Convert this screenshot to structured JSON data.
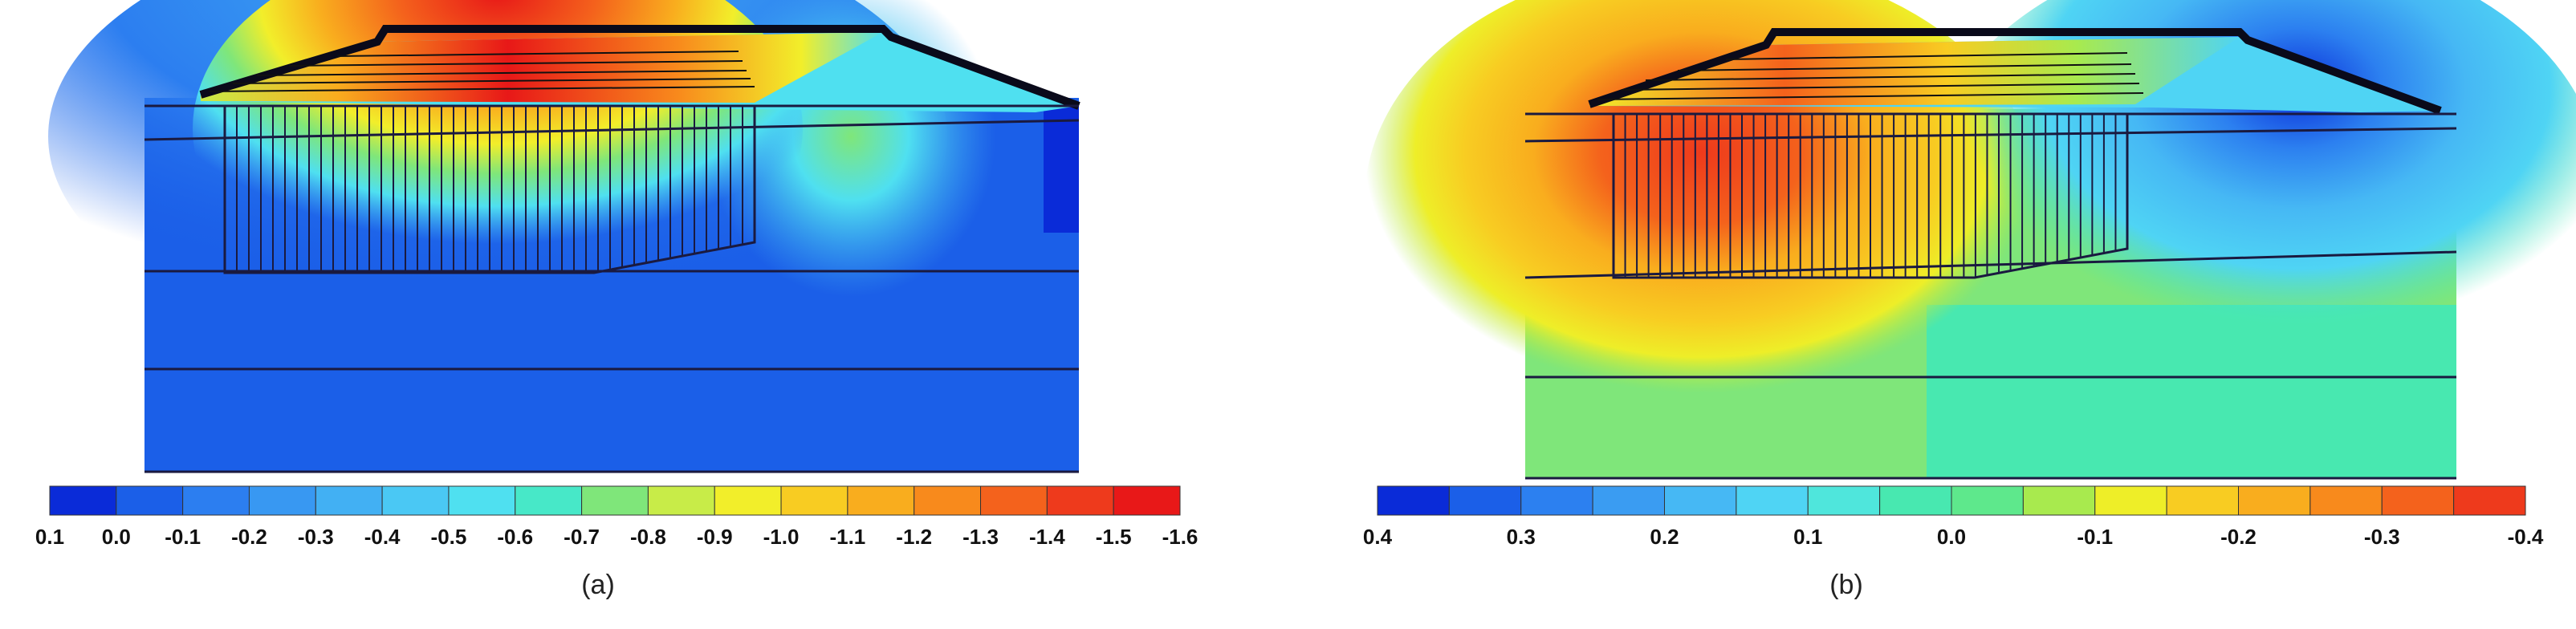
{
  "panels": [
    {
      "id": "a",
      "caption": "(a)",
      "legend": {
        "colors": [
          "#0a2bd8",
          "#1b5fe8",
          "#2c7ef0",
          "#3898f2",
          "#42b0f3",
          "#4ac8f4",
          "#4fe0f0",
          "#47e8c8",
          "#7fe67a",
          "#c8ec48",
          "#f2ee2a",
          "#f8cc22",
          "#f9ad1e",
          "#f88a1c",
          "#f4621c",
          "#ee3a1c",
          "#e81818"
        ],
        "labels": [
          "0.1",
          "0.0",
          "-0.1",
          "-0.2",
          "-0.3",
          "-0.4",
          "-0.5",
          "-0.6",
          "-0.7",
          "-0.8",
          "-0.9",
          "-1.0",
          "-1.1",
          "-1.2",
          "-1.3",
          "-1.4",
          "-1.5",
          "-1.6"
        ]
      }
    },
    {
      "id": "b",
      "caption": "(b)",
      "legend": {
        "colors": [
          "#0a2bd8",
          "#1b5fe8",
          "#2c80f0",
          "#3a9cf2",
          "#46b8f4",
          "#4fd4f4",
          "#4fe6dc",
          "#48e8b0",
          "#5ee88c",
          "#a8ea4e",
          "#eeee28",
          "#f8cc22",
          "#f9ad1e",
          "#f88a1c",
          "#f4621c",
          "#ee3a1c"
        ],
        "labels": [
          "0.4",
          "0.3",
          "0.2",
          "0.1",
          "0.0",
          "-0.1",
          "-0.2",
          "-0.3",
          "-0.4"
        ]
      }
    }
  ]
}
